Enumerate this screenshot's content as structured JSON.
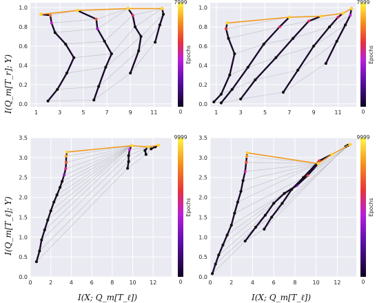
{
  "figure": {
    "shared_ylabel_top": "I(Q_m[T_r]; Y)",
    "shared_ylabel_bottom": "I(Q_m[T_ℓ]; Y)",
    "shared_xlabel": "I(X; Q_m[T_ℓ])",
    "colorbar_label": "Epochs",
    "colors": {
      "panel_bg": "#eaeaf2",
      "grid": "#ffffff",
      "line": "#b0b0b8",
      "dot_start": "#111111"
    }
  },
  "chart_data": [
    {
      "type": "line",
      "panel": "top-left",
      "xlim": [
        0.5,
        12.5
      ],
      "ylim": [
        -0.03,
        1.05
      ],
      "xticks": [
        1,
        3,
        5,
        7,
        9,
        11
      ],
      "yticks": [
        0.0,
        0.2,
        0.4,
        0.6,
        0.8,
        1.0
      ],
      "x_tick_labels": [
        "1",
        "3",
        "5",
        "7",
        "9",
        "11"
      ],
      "y_tick_labels": [
        "0.0",
        "0.2",
        "0.4",
        "0.6",
        "0.8",
        "1.0"
      ],
      "ylabel": "I(Q_m[T_r]; Y)",
      "xlabel": "",
      "colorbar": {
        "label": "Epochs",
        "min_label": "0",
        "max_label": "7999"
      },
      "grid": true,
      "series": [
        {
          "points": [
            [
              2.0,
              0.03
            ],
            [
              2.8,
              0.15
            ],
            [
              3.6,
              0.32
            ],
            [
              4.2,
              0.48
            ],
            [
              3.5,
              0.62
            ],
            [
              2.6,
              0.74
            ],
            [
              2.3,
              0.84
            ],
            [
              2.2,
              0.92
            ],
            [
              1.4,
              0.93
            ]
          ]
        },
        {
          "points": [
            [
              5.9,
              0.04
            ],
            [
              6.3,
              0.18
            ],
            [
              6.9,
              0.38
            ],
            [
              7.4,
              0.52
            ],
            [
              6.8,
              0.65
            ],
            [
              6.2,
              0.78
            ],
            [
              6.1,
              0.88
            ],
            [
              4.5,
              0.97
            ]
          ]
        },
        {
          "points": [
            [
              9.0,
              0.32
            ],
            [
              9.7,
              0.55
            ],
            [
              9.9,
              0.7
            ],
            [
              9.4,
              0.8
            ],
            [
              9.2,
              0.92
            ],
            [
              8.8,
              0.99
            ]
          ]
        },
        {
          "points": [
            [
              11.1,
              0.64
            ],
            [
              11.5,
              0.82
            ],
            [
              11.8,
              0.93
            ],
            [
              11.7,
              0.99
            ]
          ]
        }
      ]
    },
    {
      "type": "line",
      "panel": "top-right",
      "xlim": [
        0.5,
        12.5
      ],
      "ylim": [
        -0.03,
        1.05
      ],
      "xticks": [
        1,
        3,
        5,
        7,
        9,
        11
      ],
      "yticks": [
        0.0,
        0.2,
        0.4,
        0.6,
        0.8,
        1.0
      ],
      "x_tick_labels": [
        "1",
        "3",
        "5",
        "7",
        "9",
        "11"
      ],
      "y_tick_labels": [
        "0.0",
        "0.2",
        "0.4",
        "0.6",
        "0.8",
        "1.0"
      ],
      "ylabel": "",
      "xlabel": "",
      "colorbar": {
        "label": "Epochs",
        "min_label": "0",
        "max_label": "7999"
      },
      "grid": true,
      "series": [
        {
          "points": [
            [
              0.8,
              0.02
            ],
            [
              1.4,
              0.1
            ],
            [
              2.1,
              0.3
            ],
            [
              2.5,
              0.52
            ],
            [
              2.0,
              0.68
            ],
            [
              1.8,
              0.78
            ],
            [
              1.9,
              0.84
            ]
          ]
        },
        {
          "points": [
            [
              1.4,
              0.01
            ],
            [
              2.3,
              0.15
            ],
            [
              3.6,
              0.38
            ],
            [
              4.9,
              0.62
            ],
            [
              6.2,
              0.8
            ],
            [
              7.0,
              0.9
            ]
          ]
        },
        {
          "points": [
            [
              3.0,
              0.05
            ],
            [
              4.2,
              0.25
            ],
            [
              5.9,
              0.48
            ],
            [
              7.3,
              0.68
            ],
            [
              8.6,
              0.86
            ],
            [
              9.6,
              0.91
            ]
          ]
        },
        {
          "points": [
            [
              6.5,
              0.12
            ],
            [
              7.7,
              0.35
            ],
            [
              9.0,
              0.6
            ],
            [
              10.3,
              0.8
            ],
            [
              11.0,
              0.9
            ],
            [
              11.4,
              0.94
            ]
          ]
        },
        {
          "points": [
            [
              10.0,
              0.42
            ],
            [
              10.9,
              0.65
            ],
            [
              11.6,
              0.82
            ],
            [
              12.0,
              0.92
            ],
            [
              12.1,
              0.99
            ]
          ]
        }
      ]
    },
    {
      "type": "line",
      "panel": "bottom-left",
      "xlim": [
        0.0,
        13.8
      ],
      "ylim": [
        0.0,
        3.5
      ],
      "xticks": [
        0,
        2,
        4,
        6,
        8,
        10,
        12
      ],
      "yticks": [
        0.0,
        0.5,
        1.0,
        1.5,
        2.0,
        2.5,
        3.0,
        3.5
      ],
      "x_tick_labels": [
        "0",
        "2",
        "4",
        "6",
        "8",
        "10",
        "12"
      ],
      "y_tick_labels": [
        "0.0",
        "0.5",
        "1.0",
        "1.5",
        "2.0",
        "2.5",
        "3.0",
        "3.5"
      ],
      "ylabel": "I(Q_m[T_ℓ]; Y)",
      "xlabel": "I(X; Q_m[T_ℓ])",
      "colorbar": {
        "label": "Epochs",
        "min_label": "0",
        "max_label": "9999"
      },
      "grid": true,
      "series": [
        {
          "points": [
            [
              0.6,
              0.38
            ],
            [
              0.9,
              0.65
            ],
            [
              1.1,
              0.93
            ],
            [
              1.4,
              1.18
            ],
            [
              1.7,
              1.43
            ],
            [
              2.0,
              1.66
            ],
            [
              2.3,
              1.88
            ],
            [
              2.6,
              2.06
            ],
            [
              2.9,
              2.25
            ],
            [
              3.1,
              2.4
            ],
            [
              3.3,
              2.56
            ],
            [
              3.45,
              2.72
            ],
            [
              3.5,
              2.88
            ],
            [
              3.5,
              3.04
            ],
            [
              3.6,
              3.14
            ]
          ]
        },
        {
          "points": [
            [
              9.5,
              2.73
            ],
            [
              9.6,
              2.9
            ],
            [
              9.6,
              3.05
            ],
            [
              9.7,
              3.2
            ],
            [
              9.9,
              3.3
            ]
          ]
        },
        {
          "points": [
            [
              11.3,
              3.08
            ],
            [
              11.2,
              3.18
            ],
            [
              11.5,
              3.27
            ]
          ]
        },
        {
          "points": [
            [
              11.8,
              3.22
            ],
            [
              12.2,
              3.27
            ],
            [
              12.5,
              3.31
            ]
          ]
        }
      ]
    },
    {
      "type": "line",
      "panel": "bottom-right",
      "xlim": [
        0.0,
        13.8
      ],
      "ylim": [
        0.0,
        3.5
      ],
      "xticks": [
        0,
        2,
        4,
        6,
        8,
        10,
        12
      ],
      "yticks": [
        0.0,
        0.5,
        1.0,
        1.5,
        2.0,
        2.5,
        3.0,
        3.5
      ],
      "x_tick_labels": [
        "0",
        "2",
        "4",
        "6",
        "8",
        "10",
        "12"
      ],
      "y_tick_labels": [
        "0.0",
        "0.5",
        "1.0",
        "1.5",
        "2.0",
        "2.5",
        "3.0",
        "3.5"
      ],
      "ylabel": "",
      "xlabel": "I(X; Q_m[T_ℓ])",
      "colorbar": {
        "label": "Epochs",
        "min_label": "0",
        "max_label": "9999"
      },
      "grid": true,
      "series": [
        {
          "points": [
            [
              0.2,
              0.08
            ],
            [
              0.5,
              0.32
            ],
            [
              0.8,
              0.55
            ],
            [
              1.2,
              0.8
            ],
            [
              1.6,
              1.05
            ],
            [
              2.0,
              1.3
            ],
            [
              2.3,
              1.6
            ],
            [
              2.6,
              1.88
            ],
            [
              2.9,
              2.15
            ],
            [
              3.1,
              2.42
            ],
            [
              3.3,
              2.65
            ],
            [
              3.4,
              2.88
            ],
            [
              3.45,
              3.03
            ],
            [
              3.5,
              3.12
            ]
          ]
        },
        {
          "points": [
            [
              3.3,
              0.9
            ],
            [
              4.3,
              1.25
            ],
            [
              5.2,
              1.55
            ],
            [
              6.0,
              1.85
            ],
            [
              7.0,
              2.1
            ],
            [
              8.2,
              2.3
            ],
            [
              9.2,
              2.55
            ],
            [
              10.2,
              2.85
            ]
          ]
        },
        {
          "points": [
            [
              5.1,
              1.2
            ],
            [
              5.8,
              1.5
            ],
            [
              6.8,
              1.85
            ],
            [
              7.7,
              2.2
            ],
            [
              8.8,
              2.5
            ],
            [
              10.3,
              2.92
            ],
            [
              11.5,
              3.08
            ]
          ]
        },
        {
          "points": [
            [
              12.8,
              3.28
            ],
            [
              13.0,
              3.31
            ],
            [
              13.2,
              3.33
            ]
          ]
        }
      ]
    }
  ]
}
